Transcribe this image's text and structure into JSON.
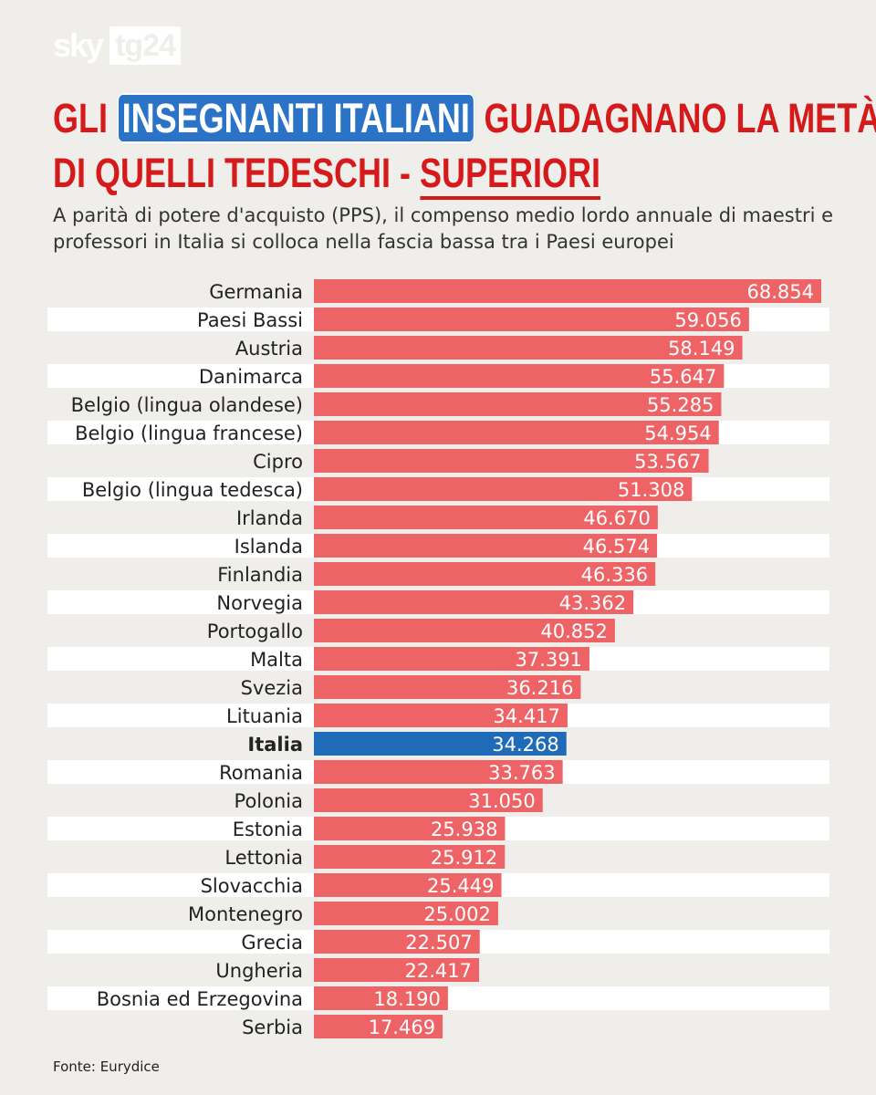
{
  "brand": {
    "sky": "sky",
    "tg24": "tg24"
  },
  "title": {
    "part1": "GLI",
    "highlight": "INSEGNANTI ITALIANI",
    "part2": "GUADAGNANO LA METÀ",
    "part3": "DI QUELLI TEDESCHI -",
    "underline": "SUPERIORI"
  },
  "subtitle": "A parità di potere d'acquisto (PPS), il compenso medio lordo annuale di maestri e professori in Italia si colloca nella fascia bassa tra i Paesi europei",
  "source": "Fonte: Eurydice",
  "colors": {
    "bar": "#ee6466",
    "highlight_bar": "#1f6bb8",
    "title": "#d41a1a",
    "stripe": "#ffffff"
  },
  "chart_data": {
    "type": "bar",
    "orientation": "horizontal",
    "highlight": "Italia",
    "categories": [
      "Germania",
      "Paesi Bassi",
      "Austria",
      "Danimarca",
      "Belgio (lingua olandese)",
      "Belgio (lingua francese)",
      "Cipro",
      "Belgio (lingua tedesca)",
      "Irlanda",
      "Islanda",
      "Finlandia",
      "Norvegia",
      "Portogallo",
      "Malta",
      "Svezia",
      "Lituania",
      "Italia",
      "Romania",
      "Polonia",
      "Estonia",
      "Lettonia",
      "Slovacchia",
      "Montenegro",
      "Grecia",
      "Ungheria",
      "Bosnia ed Erzegovina",
      "Serbia"
    ],
    "values": [
      68854,
      59056,
      58149,
      55647,
      55285,
      54954,
      53567,
      51308,
      46670,
      46574,
      46336,
      43362,
      40852,
      37391,
      36216,
      34417,
      34268,
      33763,
      31050,
      25938,
      25912,
      25449,
      25002,
      22507,
      22417,
      18190,
      17469
    ],
    "labels": [
      "68.854",
      "59.056",
      "58.149",
      "55.647",
      "55.285",
      "54.954",
      "53.567",
      "51.308",
      "46.670",
      "46.574",
      "46.336",
      "43.362",
      "40.852",
      "37.391",
      "36.216",
      "34.417",
      "34.268",
      "33.763",
      "31.050",
      "25.938",
      "25.912",
      "25.449",
      "25.002",
      "22.507",
      "22.417",
      "18.190",
      "17.469"
    ],
    "xlim": [
      0,
      68854
    ]
  }
}
